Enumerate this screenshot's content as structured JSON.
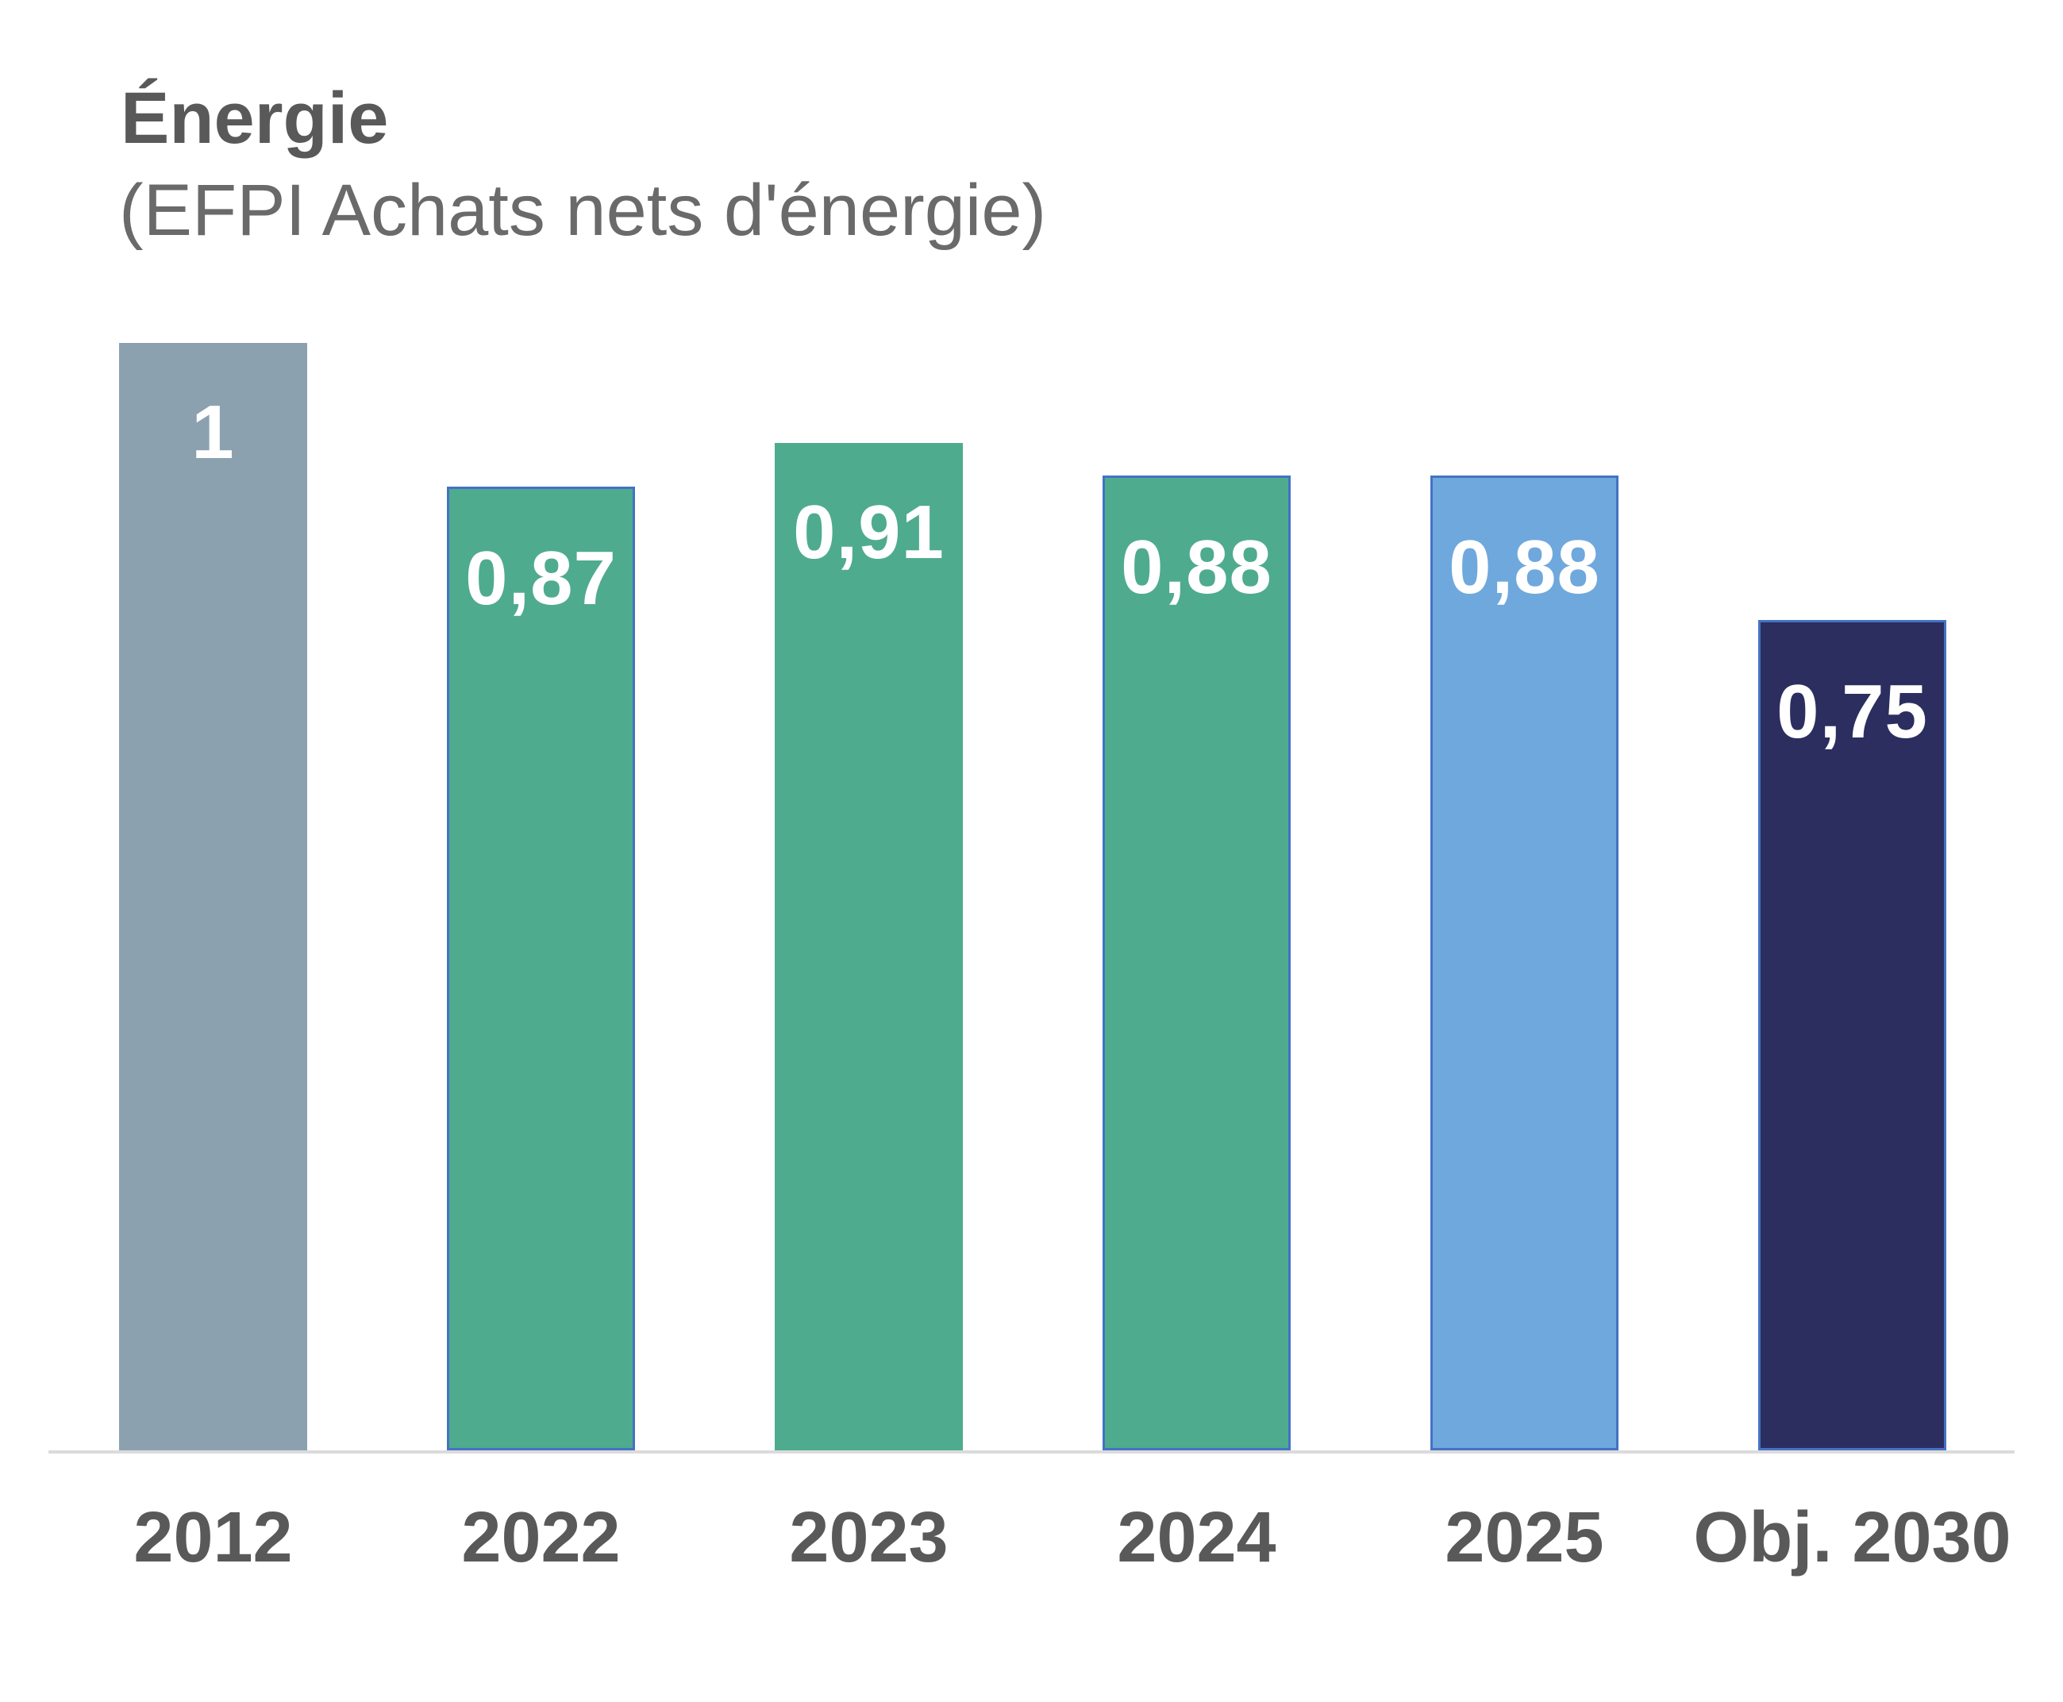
{
  "header": {
    "title": "Énergie",
    "subtitle": "(EFPI Achats nets d'énergie)",
    "title_color": "#595959",
    "subtitle_color": "#6A6A6A"
  },
  "chart_data": {
    "type": "bar",
    "title": "Énergie",
    "subtitle": "(EFPI Achats nets d'énergie)",
    "categories": [
      "2012",
      "2022",
      "2023",
      "2024",
      "2025",
      "Obj. 2030"
    ],
    "values": [
      1,
      0.87,
      0.91,
      0.88,
      0.88,
      0.75
    ],
    "value_labels": [
      "1",
      "0,87",
      "0,91",
      "0,88",
      "0,88",
      "0,75"
    ],
    "series": [
      {
        "name": "EFPI Achats nets d'énergie",
        "values": [
          1,
          0.87,
          0.91,
          0.88,
          0.88,
          0.75
        ]
      }
    ],
    "ylim": [
      0,
      1
    ],
    "grid": false,
    "legend": false,
    "xlabel": "",
    "ylabel": "",
    "bar_fill_colors": [
      "#8BA1B0",
      "#4FAB8E",
      "#4FAB8E",
      "#4FAB8E",
      "#6FA8DC",
      "#2B2E5F"
    ],
    "bar_border_colors": [
      "none",
      "#4472C4",
      "none",
      "#4472C4",
      "#4472C4",
      "#4472C4"
    ],
    "value_label_color": "#FFFFFF",
    "axis_line_color": "#DBDBDB",
    "tick_label_color": "#595959"
  }
}
